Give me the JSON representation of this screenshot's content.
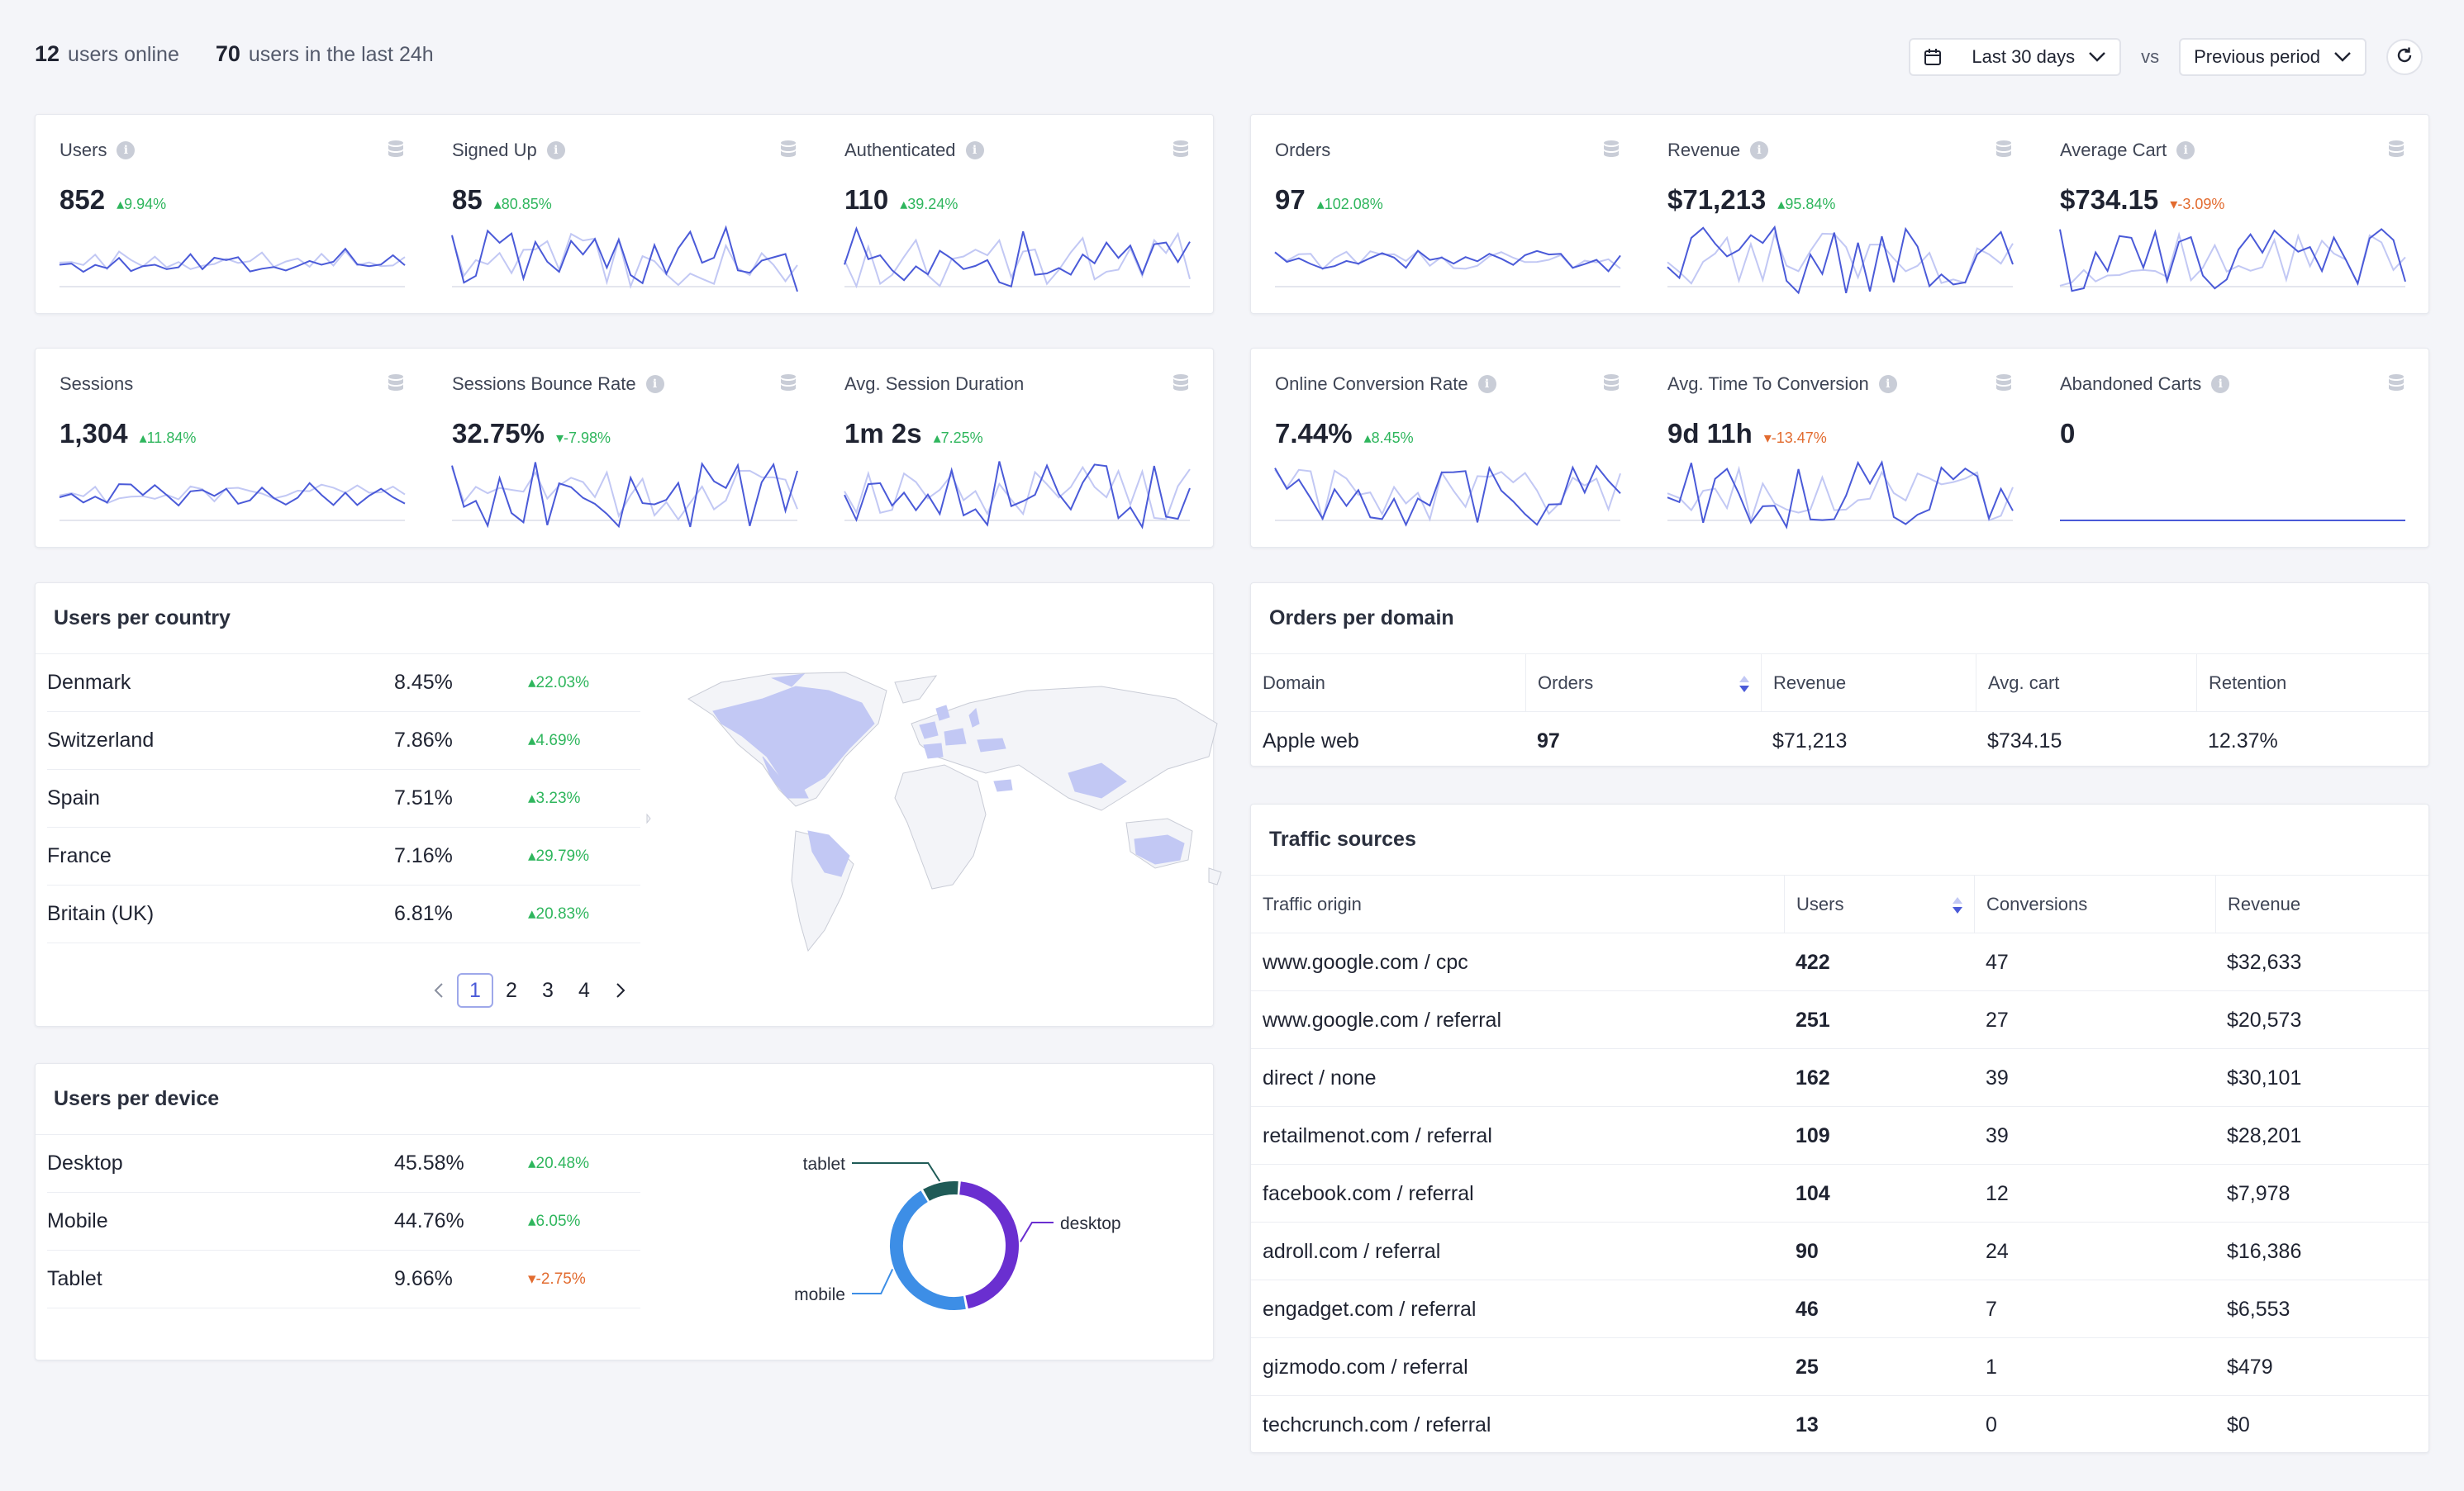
{
  "header": {
    "online_count": "12",
    "online_label": "users online",
    "day_count": "70",
    "day_label": "users in the last 24h",
    "range": "Last 30 days",
    "vs": "vs",
    "compare": "Previous period"
  },
  "colors": {
    "accent": "#4a5ad8",
    "compare_line": "#c2c8f4",
    "up": "#2fb65d",
    "down": "#e26b2f"
  },
  "kpi_users": [
    {
      "label": "Users",
      "value": "852",
      "delta": "▴9.94%",
      "dir": "up",
      "info": true
    },
    {
      "label": "Signed Up",
      "value": "85",
      "delta": "▴80.85%",
      "dir": "up",
      "info": true
    },
    {
      "label": "Authenticated",
      "value": "110",
      "delta": "▴39.24%",
      "dir": "up",
      "info": true
    }
  ],
  "kpi_orders": [
    {
      "label": "Orders",
      "value": "97",
      "delta": "▴102.08%",
      "dir": "up",
      "info": false
    },
    {
      "label": "Revenue",
      "value": "$71,213",
      "delta": "▴95.84%",
      "dir": "up",
      "info": true
    },
    {
      "label": "Average Cart",
      "value": "$734.15",
      "delta": "▾-3.09%",
      "dir": "down",
      "info": true
    }
  ],
  "kpi_sessions": [
    {
      "label": "Sessions",
      "value": "1,304",
      "delta": "▴11.84%",
      "dir": "up",
      "info": false
    },
    {
      "label": "Sessions Bounce Rate",
      "value": "32.75%",
      "delta": "▾-7.98%",
      "dir": "up",
      "info": true
    },
    {
      "label": "Avg. Session Duration",
      "value": "1m 2s",
      "delta": "▴7.25%",
      "dir": "up",
      "info": false
    }
  ],
  "kpi_conversion": [
    {
      "label": "Online Conversion Rate",
      "value": "7.44%",
      "delta": "▴8.45%",
      "dir": "up",
      "info": true
    },
    {
      "label": "Avg. Time To Conversion",
      "value": "9d 11h",
      "delta": "▾-13.47%",
      "dir": "down",
      "info": true
    },
    {
      "label": "Abandoned Carts",
      "value": "0",
      "delta": "",
      "dir": "up",
      "info": true
    }
  ],
  "country": {
    "title": "Users per country",
    "rows": [
      {
        "name": "Denmark",
        "pct": "8.45%",
        "delta": "▴22.03%"
      },
      {
        "name": "Switzerland",
        "pct": "7.86%",
        "delta": "▴4.69%"
      },
      {
        "name": "Spain",
        "pct": "7.51%",
        "delta": "▴3.23%"
      },
      {
        "name": "France",
        "pct": "7.16%",
        "delta": "▴29.79%"
      },
      {
        "name": "Britain (UK)",
        "pct": "6.81%",
        "delta": "▴20.83%"
      }
    ],
    "pages": [
      "1",
      "2",
      "3",
      "4"
    ]
  },
  "device": {
    "title": "Users per device",
    "rows": [
      {
        "name": "Desktop",
        "pct": "45.58%",
        "delta": "▴20.48%",
        "dir": "up"
      },
      {
        "name": "Mobile",
        "pct": "44.76%",
        "delta": "▴6.05%",
        "dir": "up"
      },
      {
        "name": "Tablet",
        "pct": "9.66%",
        "delta": "▾-2.75%",
        "dir": "down"
      }
    ],
    "labels": {
      "tablet": "tablet",
      "desktop": "desktop",
      "mobile": "mobile"
    },
    "colors": {
      "desktop": "#6a2fd0",
      "mobile": "#3d8ee6",
      "tablet": "#1f5b57"
    }
  },
  "domain": {
    "title": "Orders per domain",
    "headers": [
      "Domain",
      "Orders",
      "Revenue",
      "Avg. cart",
      "Retention"
    ],
    "rows": [
      [
        "Apple web",
        "97",
        "$71,213",
        "$734.15",
        "12.37%"
      ]
    ]
  },
  "traffic": {
    "title": "Traffic sources",
    "headers": [
      "Traffic origin",
      "Users",
      "Conversions",
      "Revenue"
    ],
    "rows": [
      [
        "www.google.com / cpc",
        "422",
        "47",
        "$32,633"
      ],
      [
        "www.google.com / referral",
        "251",
        "27",
        "$20,573"
      ],
      [
        "direct / none",
        "162",
        "39",
        "$30,101"
      ],
      [
        "retailmenot.com / referral",
        "109",
        "39",
        "$28,201"
      ],
      [
        "facebook.com / referral",
        "104",
        "12",
        "$7,978"
      ],
      [
        "adroll.com / referral",
        "90",
        "24",
        "$16,386"
      ],
      [
        "engadget.com / referral",
        "46",
        "7",
        "$6,553"
      ],
      [
        "gizmodo.com / referral",
        "25",
        "1",
        "$479"
      ],
      [
        "techcrunch.com / referral",
        "13",
        "0",
        "$0"
      ]
    ]
  },
  "chart_data": {
    "type": "pie",
    "categories": [
      "desktop",
      "mobile",
      "tablet"
    ],
    "values": [
      45.58,
      44.76,
      9.66
    ],
    "title": "",
    "legend": "labels outside"
  }
}
